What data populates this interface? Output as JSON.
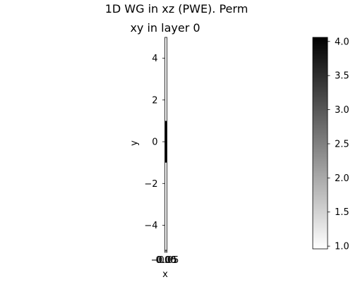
{
  "chart_data": {
    "type": "heatmap",
    "title_line1": "1D WG in xz (PWE). Perm",
    "title_line2": "xy in layer 0",
    "xlabel": "x",
    "ylabel": "y",
    "xlim": [
      -0.05,
      0.05
    ],
    "ylim": [
      -5.2,
      5.0
    ],
    "x_ticks": [
      -0.05,
      0.0,
      0.05
    ],
    "x_tick_labels": [
      "−0.05",
      "0.00",
      "0.05"
    ],
    "y_ticks": [
      4,
      2,
      0,
      -2,
      -4
    ],
    "y_tick_labels": [
      "4",
      "2",
      "0",
      "−2",
      "−4"
    ],
    "cells": [
      {
        "y0": -5.2,
        "y1": -1.0,
        "value": 1.0
      },
      {
        "y0": -1.0,
        "y1": 1.0,
        "value": 4.0
      },
      {
        "y0": 1.0,
        "y1": 5.0,
        "value": 1.0
      }
    ],
    "colorbar": {
      "colormap": "gray_r",
      "range": [
        0.96,
        4.06
      ],
      "ticks": [
        4.0,
        3.5,
        3.0,
        2.5,
        2.0,
        1.5,
        1.0
      ],
      "tick_labels": [
        "4.0",
        "3.5",
        "3.0",
        "2.5",
        "2.0",
        "1.5",
        "1.0"
      ],
      "color_low": "#ffffff",
      "color_high": "#000000"
    },
    "grid": false
  }
}
